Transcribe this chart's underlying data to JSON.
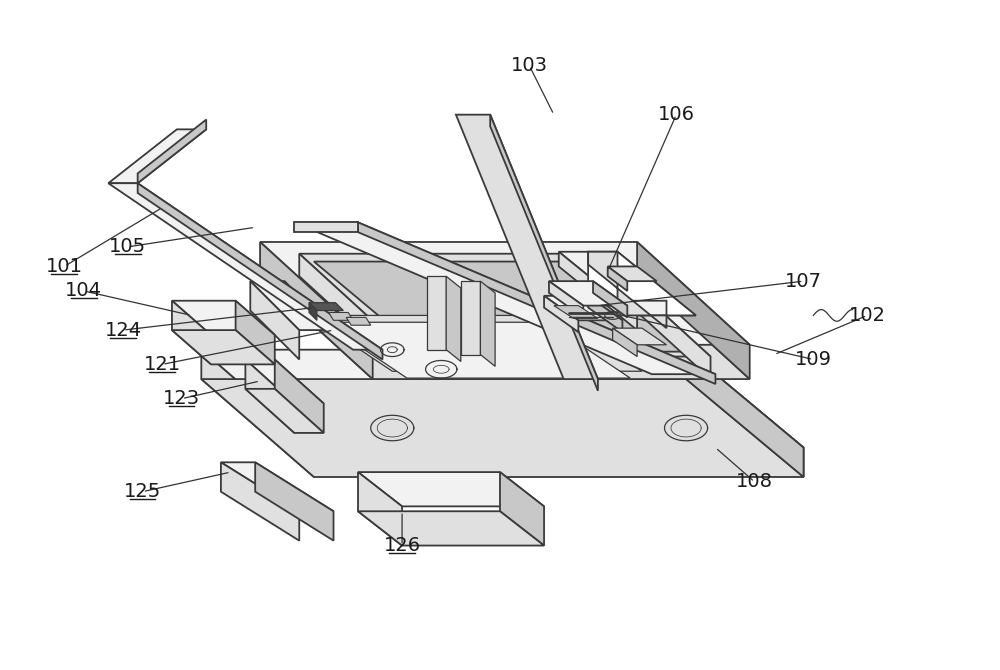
{
  "bg_color": "#ffffff",
  "lc": "#3a3a3a",
  "lw": 1.3,
  "tlw": 0.9,
  "label_fs": 14,
  "underlined": [
    "101",
    "105",
    "104",
    "124",
    "121",
    "123",
    "125",
    "126"
  ],
  "white": "#ffffff",
  "light1": "#f2f2f2",
  "light2": "#e0e0e0",
  "light3": "#c8c8c8",
  "dark1": "#b0b0b0",
  "dark2": "#989898"
}
